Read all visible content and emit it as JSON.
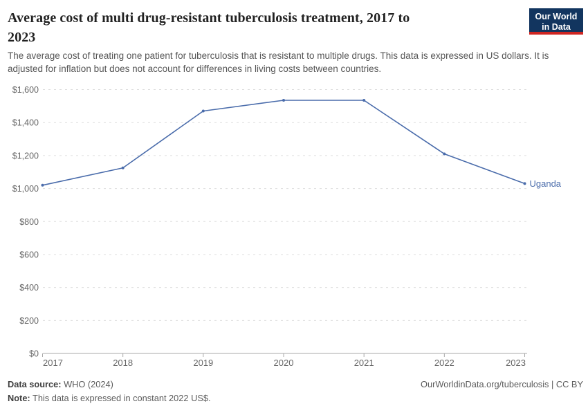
{
  "header": {
    "title": "Average cost of multi drug-resistant tuberculosis treatment, 2017 to 2023",
    "subtitle": "The average cost of treating one patient for tuberculosis that is resistant to multiple drugs. This data is expressed in US dollars. It is adjusted for inflation but does not account for differences in living costs between countries.",
    "logo": {
      "line1": "Our World",
      "line2": "in Data",
      "bg_color": "#12355f",
      "accent_color": "#cf2622"
    }
  },
  "chart_data": {
    "type": "line",
    "title": "Average cost of multi drug-resistant tuberculosis treatment, 2017 to 2023",
    "x": [
      2017,
      2018,
      2019,
      2020,
      2021,
      2022,
      2023
    ],
    "xtick_labels": [
      "2017",
      "2018",
      "2019",
      "2020",
      "2021",
      "2022",
      "2023"
    ],
    "series": [
      {
        "name": "Uganda",
        "values": [
          1020,
          1125,
          1470,
          1535,
          1535,
          1210,
          1030
        ],
        "color": "#4a6cab"
      }
    ],
    "ylim": [
      0,
      1600
    ],
    "yticks": {
      "values": [
        0,
        200,
        400,
        600,
        800,
        1000,
        1200,
        1400,
        1600
      ],
      "labels": [
        "$0",
        "$200",
        "$400",
        "$600",
        "$800",
        "$1,000",
        "$1,200",
        "$1,400",
        "$1,600"
      ]
    },
    "grid": "horizontal-dashed",
    "legend_position": "end-of-line-label",
    "end_label": "Uganda",
    "colors": {
      "line": "#4a6cab",
      "grid": "#dddddd",
      "axis": "#a8a8a8",
      "tick_text": "#666666"
    }
  },
  "footer": {
    "datasource_label": "Data source:",
    "datasource_value": " WHO (2024)",
    "note_label": "Note:",
    "note_value": " This data is expressed in constant 2022 US$.",
    "link": "OurWorldinData.org/tuberculosis | CC BY"
  }
}
